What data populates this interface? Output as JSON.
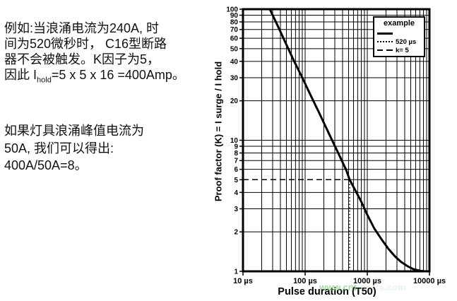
{
  "left_text": {
    "para1_lines": [
      "例如:当浪涌电流为240A, 时",
      "间为520微秒时， C16型断路",
      "器不会被触发。K因子为5，"
    ],
    "para1_line4": {
      "before": "因此 I",
      "sub": "hold",
      "after": "=5 x 5 x 16 =400Amp。"
    },
    "para2_lines": [
      "如果灯具浪涌峰值电流为",
      "50A, 我们可以得出:",
      "400A/50A=8。"
    ]
  },
  "watermark": {
    "strong": "www.cnt",
    "faint": "ronics.com",
    "color": "#7cc47c"
  },
  "chart_data": {
    "type": "line",
    "xscale": "log",
    "yscale": "log",
    "xlim": [
      10,
      10000
    ],
    "ylim": [
      1,
      100
    ],
    "grid": "on",
    "xlabel": "Pulse duration (T50)",
    "ylabel": "Proof factor (K) = I surge / I hold",
    "x_ticks": {
      "values": [
        10,
        100,
        1000,
        10000
      ],
      "labels": [
        "10 µs",
        "100 µs",
        "1000 µs",
        "10000 µs"
      ]
    },
    "y_ticks": {
      "values": [
        1,
        2,
        3,
        4,
        5,
        6,
        7,
        8,
        9,
        10,
        20,
        30,
        40,
        50,
        60,
        70,
        80,
        90,
        100
      ],
      "labels": [
        "1",
        "2",
        "3",
        "4",
        "5",
        "6",
        "7",
        "8",
        "9",
        "10",
        "20",
        "30",
        "40",
        "50",
        "60",
        "70",
        "80",
        "90",
        "100"
      ]
    },
    "y_grid_skip": [
      5
    ],
    "legend": {
      "position": "top-right",
      "title": "example",
      "entries": [
        {
          "style": "solid",
          "label": ""
        },
        {
          "style": "dotted",
          "label": "520 µs"
        },
        {
          "style": "dashed",
          "label": "k= 5"
        }
      ]
    },
    "series": [
      {
        "name": "example",
        "style": "solid",
        "width": 3,
        "points": [
          [
            27,
            100
          ],
          [
            36,
            75
          ],
          [
            48,
            56
          ],
          [
            65,
            41
          ],
          [
            90,
            30
          ],
          [
            120,
            22.5
          ],
          [
            170,
            16
          ],
          [
            240,
            11.3
          ],
          [
            340,
            8
          ],
          [
            460,
            5.9
          ],
          [
            520,
            5
          ],
          [
            650,
            4.1
          ],
          [
            800,
            3.4
          ],
          [
            1000,
            2.7
          ],
          [
            1300,
            2.12
          ],
          [
            1700,
            1.75
          ],
          [
            2200,
            1.48
          ],
          [
            2800,
            1.3
          ],
          [
            3500,
            1.18
          ],
          [
            4500,
            1.09
          ],
          [
            5500,
            1.04
          ],
          [
            7000,
            1.01
          ],
          [
            8500,
            1
          ]
        ]
      },
      {
        "name": "520 µs marker",
        "style": "dotted",
        "width": 1.5,
        "points": [
          [
            520,
            1
          ],
          [
            520,
            5
          ]
        ]
      },
      {
        "name": "k= 5 marker",
        "style": "dashed",
        "width": 1.5,
        "points": [
          [
            10,
            5
          ],
          [
            520,
            5
          ]
        ]
      },
      {
        "name": "k=5 gridline right of curve",
        "style": "solid",
        "width": 1,
        "points": [
          [
            520,
            5
          ],
          [
            10000,
            5
          ]
        ]
      }
    ]
  }
}
